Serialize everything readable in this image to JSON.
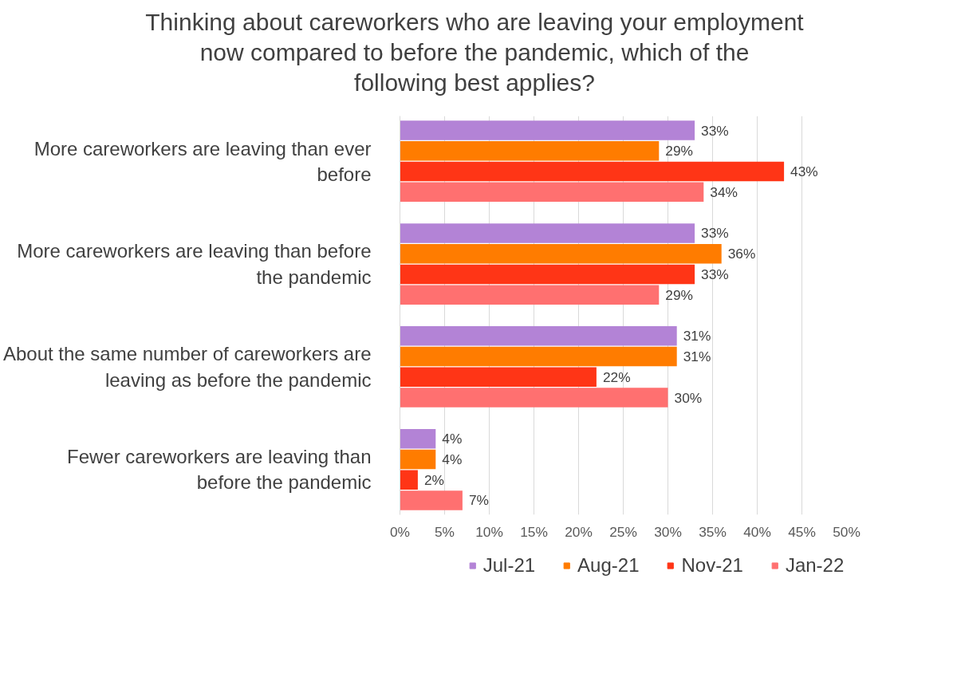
{
  "chart_data": {
    "type": "bar",
    "orientation": "horizontal",
    "title": "Thinking about careworkers who are leaving your employment now compared to before the pandemic, which of the following best applies?",
    "categories": [
      "More careworkers are leaving than ever before",
      "More careworkers are leaving than before the pandemic",
      "About the same number of careworkers are leaving as before the pandemic",
      "Fewer careworkers are leaving than before the pandemic"
    ],
    "series": [
      {
        "name": "Jul-21",
        "color": "#b383d6",
        "values": [
          33,
          33,
          31,
          4
        ],
        "value_labels": [
          "33%",
          "33%",
          "31%",
          "4%"
        ]
      },
      {
        "name": "Aug-21",
        "color": "#ff7c00",
        "values": [
          29,
          36,
          31,
          4
        ],
        "value_labels": [
          "29%",
          "36%",
          "31%",
          "4%"
        ]
      },
      {
        "name": "Nov-21",
        "color": "#ff3516",
        "values": [
          43,
          33,
          22,
          2
        ],
        "value_labels": [
          "43%",
          "33%",
          "22%",
          "2%"
        ]
      },
      {
        "name": "Jan-22",
        "color": "#ff7070",
        "values": [
          34,
          29,
          30,
          7
        ],
        "value_labels": [
          "34%",
          "29%",
          "30%",
          "7%"
        ]
      }
    ],
    "xlim": [
      0,
      50
    ],
    "xticks": [
      {
        "value": 0,
        "label": "0%"
      },
      {
        "value": 5,
        "label": "5%"
      },
      {
        "value": 10,
        "label": "10%"
      },
      {
        "value": 15,
        "label": "15%"
      },
      {
        "value": 20,
        "label": "20%"
      },
      {
        "value": 25,
        "label": "25%"
      },
      {
        "value": 30,
        "label": "30%"
      },
      {
        "value": 35,
        "label": "35%"
      },
      {
        "value": 40,
        "label": "40%"
      },
      {
        "value": 45,
        "label": "45%"
      },
      {
        "value": 50,
        "label": "50%"
      }
    ],
    "grid": "x",
    "legend": "bottom"
  }
}
